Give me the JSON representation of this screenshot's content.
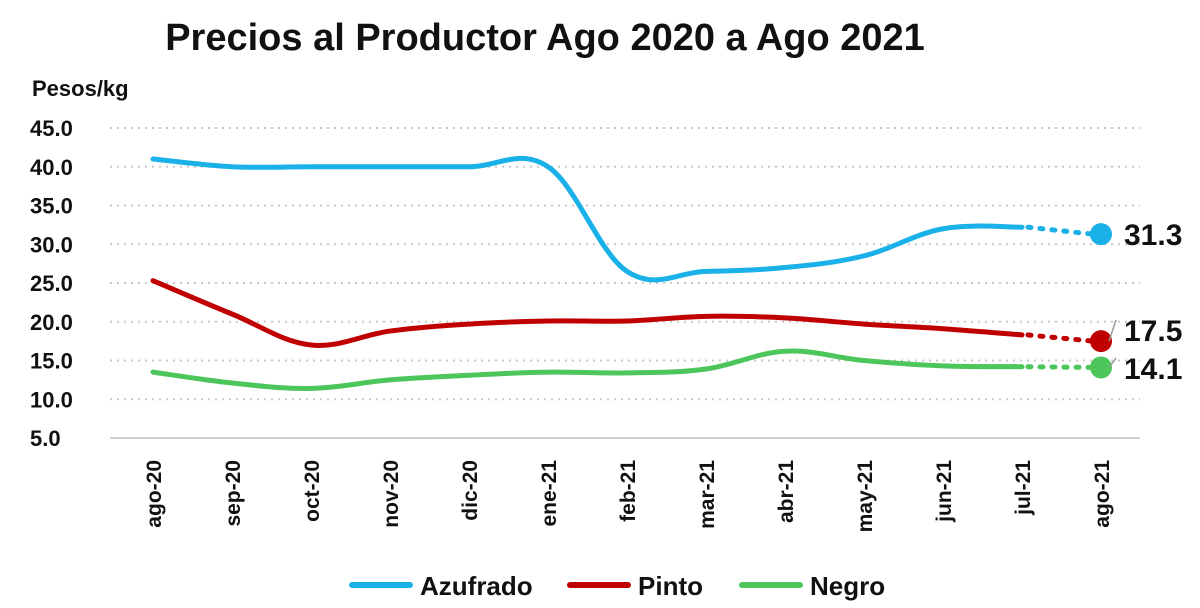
{
  "chart_data": {
    "type": "line",
    "title": "Precios al Productor Ago 2020 a Ago 2021",
    "ylabel": "Pesos/kg",
    "xlabel": "",
    "categories": [
      "ago-20",
      "sep-20",
      "oct-20",
      "nov-20",
      "dic-20",
      "ene-21",
      "feb-21",
      "mar-21",
      "abr-21",
      "may-21",
      "jun-21",
      "jul-21",
      "ago-21"
    ],
    "yticks": [
      "5.0",
      "10.0",
      "15.0",
      "20.0",
      "25.0",
      "30.0",
      "35.0",
      "40.0",
      "45.0"
    ],
    "ylim": [
      5,
      45
    ],
    "grid": true,
    "legend_position": "bottom",
    "series": [
      {
        "name": "Azufrado",
        "color": "#1AB0E8",
        "values": [
          41.0,
          40.0,
          40.0,
          40.0,
          40.0,
          40.0,
          26.5,
          26.5,
          27.0,
          28.5,
          32.0,
          32.2,
          31.3
        ],
        "end_label": "31.3"
      },
      {
        "name": "Pinto",
        "color": "#C00000",
        "values": [
          25.3,
          21.0,
          17.0,
          18.8,
          19.7,
          20.1,
          20.1,
          20.7,
          20.5,
          19.7,
          19.1,
          18.3,
          17.5
        ],
        "end_label": "17.5"
      },
      {
        "name": "Negro",
        "color": "#4CC65A",
        "values": [
          13.5,
          12.1,
          11.4,
          12.5,
          13.1,
          13.5,
          13.4,
          13.9,
          16.2,
          15.0,
          14.3,
          14.2,
          14.1
        ],
        "end_label": "14.1"
      }
    ]
  }
}
